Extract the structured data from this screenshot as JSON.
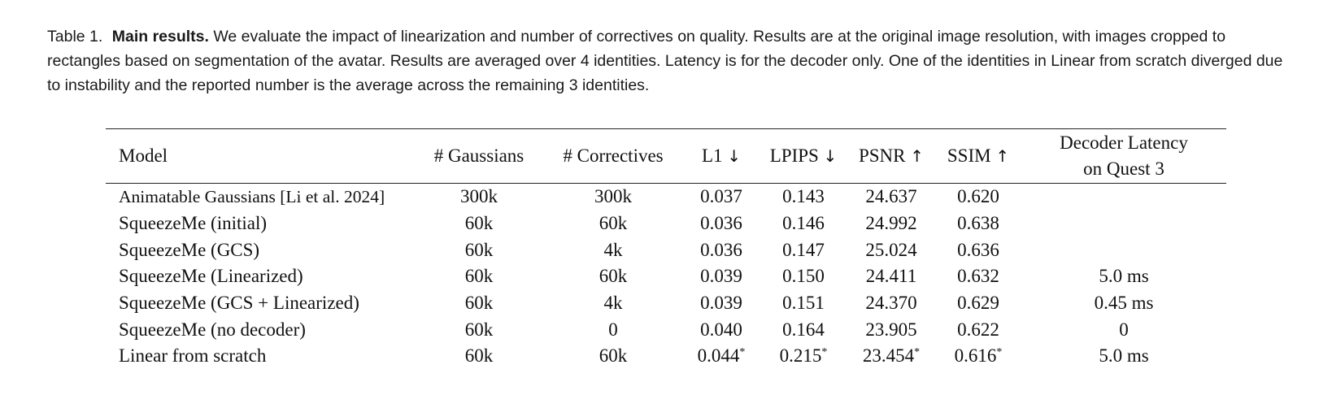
{
  "caption": {
    "label": "Table 1.",
    "bold_lead": "Main results.",
    "text": "We evaluate the impact of linearization and number of correctives on quality. Results are at the original image resolution, with images cropped to rectangles based on segmentation of the avatar. Results are averaged over 4 identities. Latency is for the decoder only. One of the identities in Linear from scratch diverged due to instability and the reported number is the average across the remaining 3 identities."
  },
  "table": {
    "headers": {
      "model": "Model",
      "gaussians": "# Gaussians",
      "correctives": "# Correctives",
      "l1": "L1",
      "l1_arrow": "↓",
      "lpips": "LPIPS",
      "lpips_arrow": "↓",
      "psnr": "PSNR",
      "psnr_arrow": "↑",
      "ssim": "SSIM",
      "ssim_arrow": "↑",
      "latency_line1": "Decoder Latency",
      "latency_line2": "on Quest 3"
    },
    "rows": [
      {
        "model": "Animatable Gaussians [Li et al. 2024]",
        "gaussians": "300k",
        "correctives": "300k",
        "l1": "0.037",
        "lpips": "0.143",
        "psnr": "24.637",
        "ssim": "0.620",
        "latency": ""
      },
      {
        "model": "SqueezeMe (initial)",
        "gaussians": "60k",
        "correctives": "60k",
        "l1": "0.036",
        "lpips": "0.146",
        "psnr": "24.992",
        "ssim": "0.638",
        "latency": ""
      },
      {
        "model": "SqueezeMe (GCS)",
        "gaussians": "60k",
        "correctives": "4k",
        "l1": "0.036",
        "lpips": "0.147",
        "psnr": "25.024",
        "ssim": "0.636",
        "latency": ""
      },
      {
        "model": "SqueezeMe (Linearized)",
        "gaussians": "60k",
        "correctives": "60k",
        "l1": "0.039",
        "lpips": "0.150",
        "psnr": "24.411",
        "ssim": "0.632",
        "latency": "5.0 ms"
      },
      {
        "model": "SqueezeMe (GCS + Linearized)",
        "gaussians": "60k",
        "correctives": "4k",
        "l1": "0.039",
        "lpips": "0.151",
        "psnr": "24.370",
        "ssim": "0.629",
        "latency": "0.45 ms"
      },
      {
        "model": "SqueezeMe (no decoder)",
        "gaussians": "60k",
        "correctives": "0",
        "l1": "0.040",
        "lpips": "0.164",
        "psnr": "23.905",
        "ssim": "0.622",
        "latency": "0"
      },
      {
        "model": "Linear from scratch",
        "gaussians": "60k",
        "correctives": "60k",
        "l1": "0.044",
        "l1_mark": "*",
        "lpips": "0.215",
        "lpips_mark": "*",
        "psnr": "23.454",
        "psnr_mark": "*",
        "ssim": "0.616",
        "ssim_mark": "*",
        "latency": "5.0 ms"
      }
    ]
  }
}
